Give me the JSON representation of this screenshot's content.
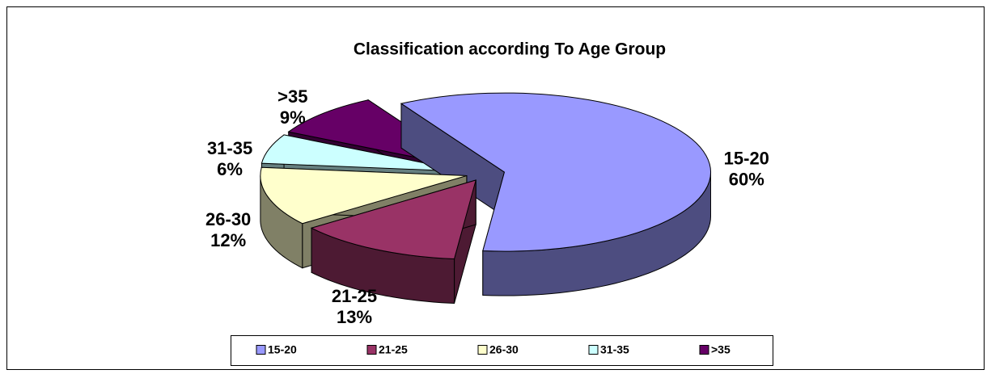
{
  "chart_data": {
    "type": "pie",
    "title": "Classification according To Age Group",
    "categories": [
      "15-20",
      "21-25",
      "26-30",
      "31-35",
      ">35"
    ],
    "values": [
      60,
      13,
      12,
      6,
      9
    ],
    "value_labels": [
      "60%",
      "13%",
      "12%",
      "6%",
      "9%"
    ],
    "colors": [
      "#9999ff",
      "#993366",
      "#ffffcc",
      "#ccffff",
      "#660066"
    ],
    "legend": "bottom"
  }
}
